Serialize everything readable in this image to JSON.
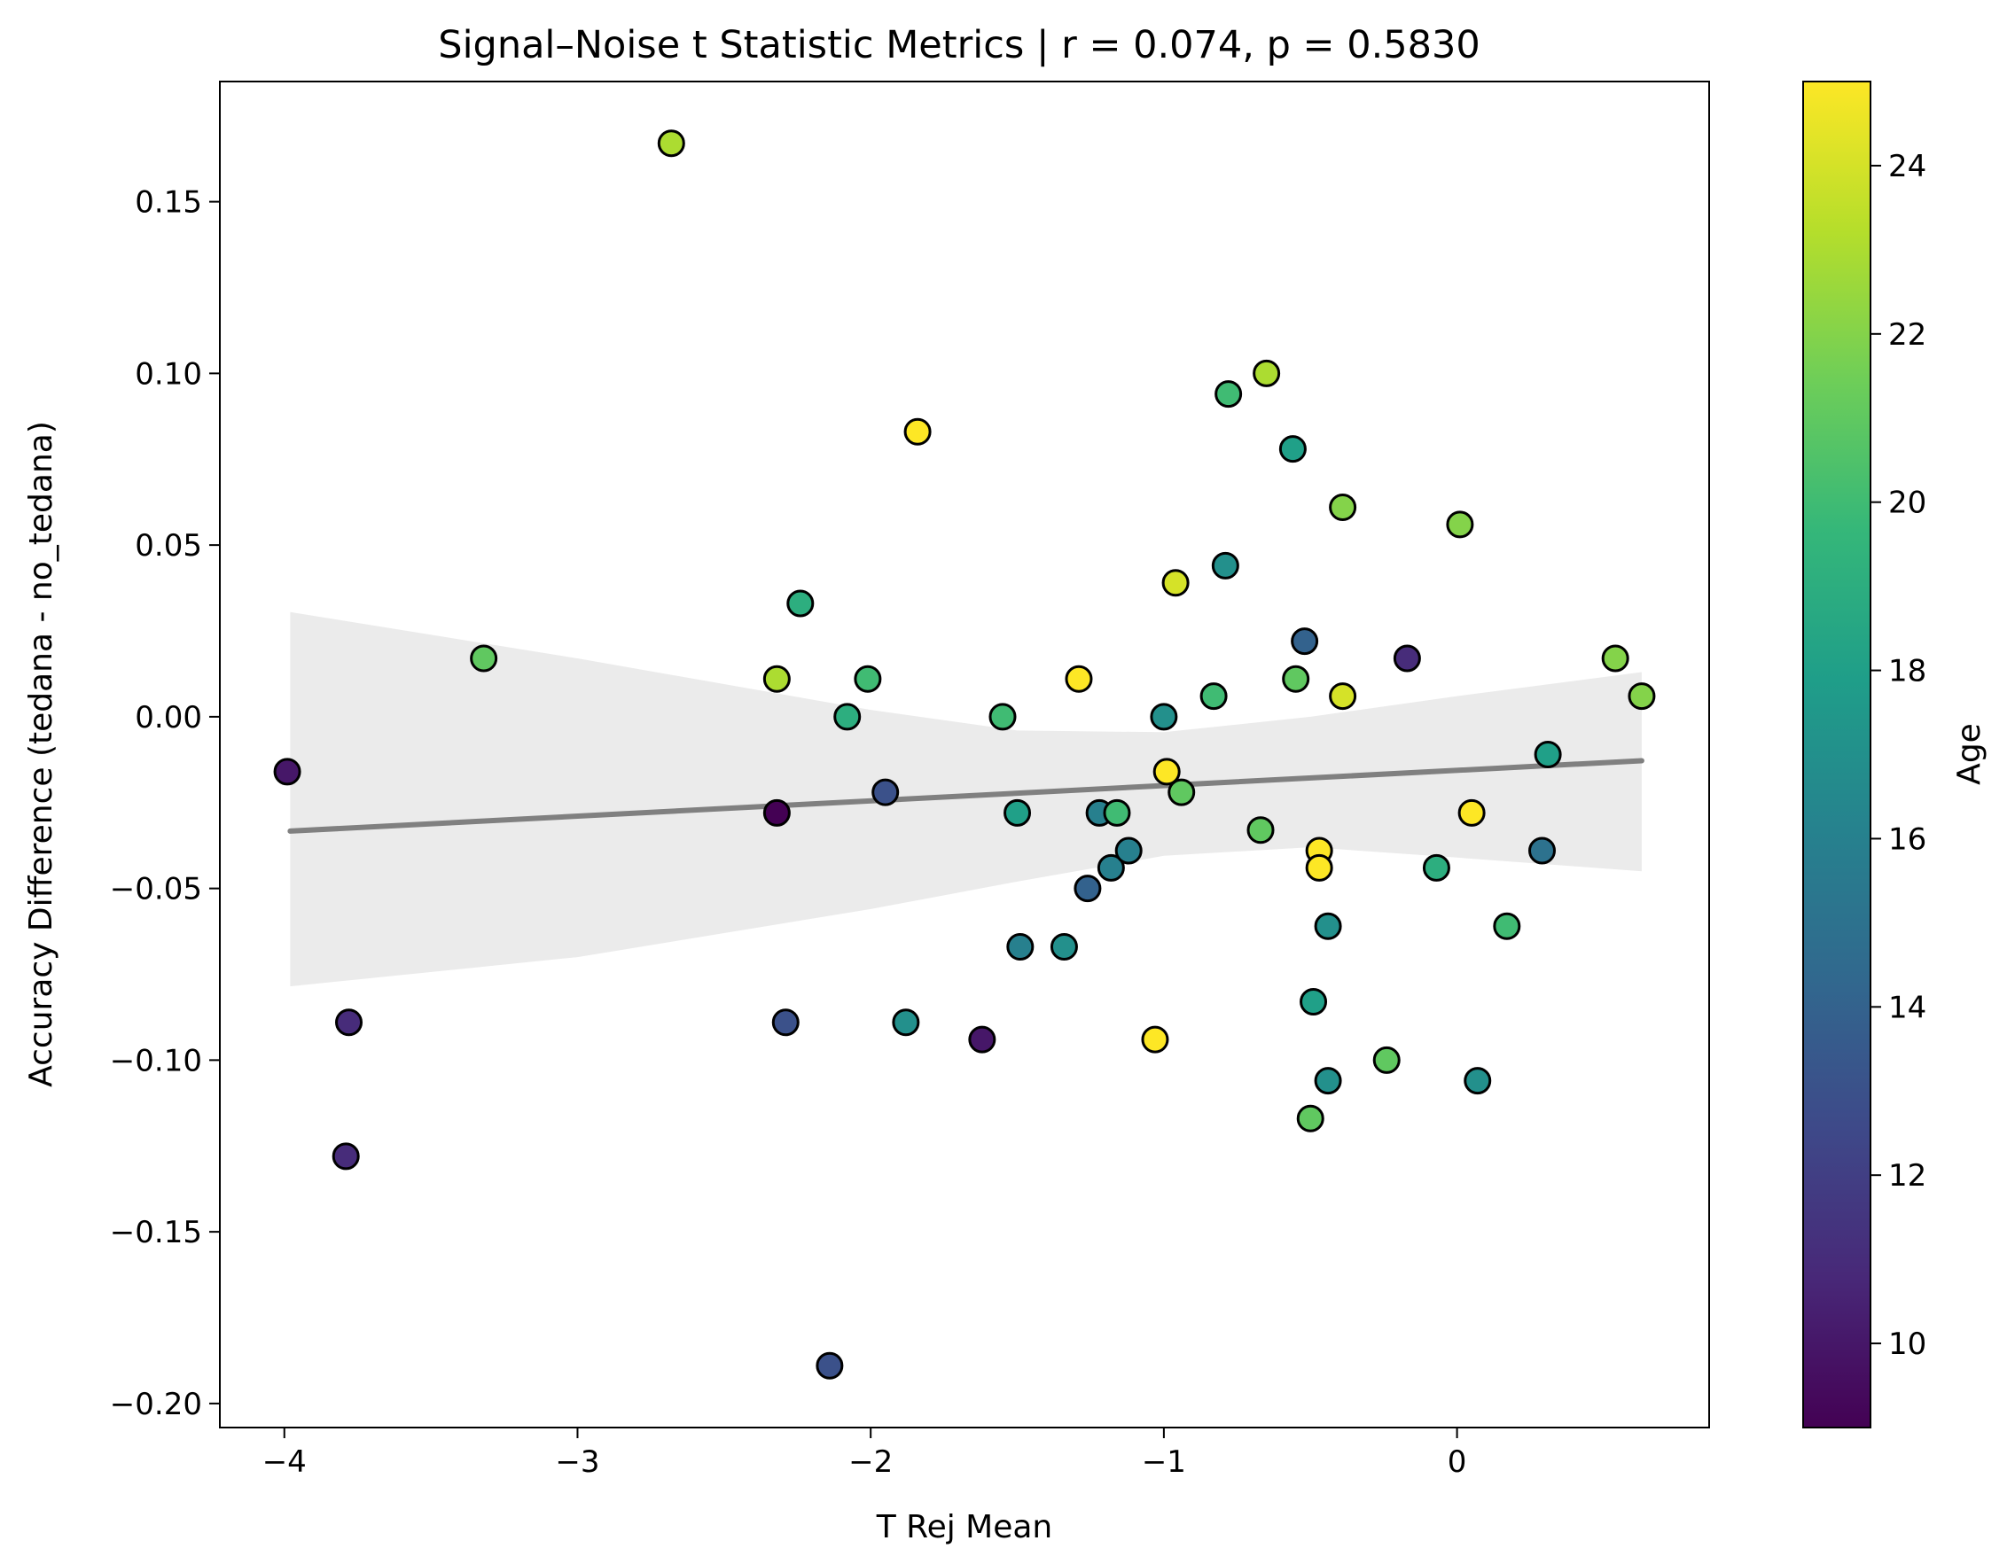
{
  "chart_data": {
    "type": "scatter",
    "title": "Signal–Noise t Statistic Metrics | r = 0.074, p = 0.5830",
    "xlabel": "T Rej Mean",
    "ylabel": "Accuracy Difference (tedana - no_tedana)",
    "xlim": [
      -4.22,
      0.86
    ],
    "ylim": [
      -0.207,
      0.185
    ],
    "x_ticks": [
      -4,
      -3,
      -2,
      -1,
      0
    ],
    "x_tick_labels": [
      "−4",
      "−3",
      "−2",
      "−1",
      "0"
    ],
    "y_ticks": [
      0.15,
      0.1,
      0.05,
      0.0,
      -0.05,
      -0.1,
      -0.15,
      -0.2
    ],
    "y_tick_labels": [
      "0.15",
      "0.10",
      "0.05",
      "0.00",
      "−0.05",
      "−0.10",
      "−0.15",
      "−0.20"
    ],
    "grid": false,
    "colorbar": {
      "label": "Age",
      "range": [
        9,
        25
      ],
      "ticks": [
        10,
        12,
        14,
        16,
        18,
        20,
        22,
        24
      ],
      "tick_labels": [
        "10",
        "12",
        "14",
        "16",
        "18",
        "20",
        "22",
        "24"
      ],
      "colormap": "viridis"
    },
    "regression": {
      "x_range": [
        -3.98,
        0.63
      ],
      "y_at_start": -0.0333,
      "y_at_end": -0.0128,
      "line_color": "#808080",
      "ci_color": "#ebebeb",
      "ci_band": [
        {
          "x": -3.98,
          "lower": -0.0785,
          "upper": 0.0305
        },
        {
          "x": -3.0,
          "lower": -0.07,
          "upper": 0.017
        },
        {
          "x": -2.0,
          "lower": -0.056,
          "upper": 0.002
        },
        {
          "x": -1.5,
          "lower": -0.048,
          "upper": -0.004
        },
        {
          "x": -1.0,
          "lower": -0.0405,
          "upper": -0.0045
        },
        {
          "x": -0.5,
          "lower": -0.038,
          "upper": 0.0
        },
        {
          "x": 0.0,
          "lower": -0.041,
          "upper": 0.006
        },
        {
          "x": 0.63,
          "lower": -0.045,
          "upper": 0.013
        }
      ]
    },
    "points": [
      {
        "x": -2.68,
        "y": 0.167,
        "age": 23
      },
      {
        "x": -3.32,
        "y": 0.017,
        "age": 21
      },
      {
        "x": -3.99,
        "y": -0.016,
        "age": 10
      },
      {
        "x": -3.78,
        "y": -0.089,
        "age": 11
      },
      {
        "x": -3.79,
        "y": -0.128,
        "age": 11
      },
      {
        "x": -2.32,
        "y": 0.011,
        "age": 23
      },
      {
        "x": -2.24,
        "y": 0.033,
        "age": 19
      },
      {
        "x": -2.01,
        "y": 0.011,
        "age": 20
      },
      {
        "x": -2.08,
        "y": 0.0,
        "age": 19
      },
      {
        "x": -1.95,
        "y": -0.022,
        "age": 13
      },
      {
        "x": -2.32,
        "y": -0.028,
        "age": 9
      },
      {
        "x": -2.29,
        "y": -0.089,
        "age": 13
      },
      {
        "x": -1.88,
        "y": -0.089,
        "age": 17
      },
      {
        "x": -1.84,
        "y": 0.083,
        "age": 25
      },
      {
        "x": -2.14,
        "y": -0.189,
        "age": 13
      },
      {
        "x": -1.62,
        "y": -0.094,
        "age": 10
      },
      {
        "x": -1.55,
        "y": 0.0,
        "age": 20
      },
      {
        "x": -1.5,
        "y": -0.028,
        "age": 18
      },
      {
        "x": -1.49,
        "y": -0.067,
        "age": 16
      },
      {
        "x": -1.34,
        "y": -0.067,
        "age": 17
      },
      {
        "x": -1.29,
        "y": 0.011,
        "age": 25
      },
      {
        "x": -1.26,
        "y": -0.05,
        "age": 14
      },
      {
        "x": -1.22,
        "y": -0.028,
        "age": 16
      },
      {
        "x": -1.16,
        "y": -0.028,
        "age": 20
      },
      {
        "x": -1.18,
        "y": -0.044,
        "age": 16
      },
      {
        "x": -1.12,
        "y": -0.039,
        "age": 16
      },
      {
        "x": -1.0,
        "y": 0.0,
        "age": 17
      },
      {
        "x": -0.99,
        "y": -0.016,
        "age": 25
      },
      {
        "x": -0.94,
        "y": -0.022,
        "age": 21
      },
      {
        "x": -0.96,
        "y": 0.039,
        "age": 24
      },
      {
        "x": -1.03,
        "y": -0.094,
        "age": 25
      },
      {
        "x": -0.83,
        "y": 0.006,
        "age": 20
      },
      {
        "x": -0.78,
        "y": 0.094,
        "age": 20
      },
      {
        "x": -0.79,
        "y": 0.044,
        "age": 17
      },
      {
        "x": -0.65,
        "y": 0.1,
        "age": 23
      },
      {
        "x": -0.67,
        "y": -0.033,
        "age": 21
      },
      {
        "x": -0.56,
        "y": 0.078,
        "age": 18
      },
      {
        "x": -0.55,
        "y": 0.011,
        "age": 21
      },
      {
        "x": -0.52,
        "y": 0.022,
        "age": 14
      },
      {
        "x": -0.49,
        "y": -0.083,
        "age": 18
      },
      {
        "x": -0.47,
        "y": -0.039,
        "age": 25
      },
      {
        "x": -0.47,
        "y": -0.044,
        "age": 25
      },
      {
        "x": -0.44,
        "y": -0.061,
        "age": 17
      },
      {
        "x": -0.44,
        "y": -0.106,
        "age": 17
      },
      {
        "x": -0.5,
        "y": -0.117,
        "age": 21
      },
      {
        "x": -0.39,
        "y": 0.061,
        "age": 22
      },
      {
        "x": -0.39,
        "y": 0.006,
        "age": 24
      },
      {
        "x": -0.24,
        "y": -0.1,
        "age": 21
      },
      {
        "x": -0.17,
        "y": 0.017,
        "age": 11
      },
      {
        "x": -0.07,
        "y": -0.044,
        "age": 19
      },
      {
        "x": 0.01,
        "y": 0.056,
        "age": 22
      },
      {
        "x": 0.05,
        "y": -0.028,
        "age": 25
      },
      {
        "x": 0.07,
        "y": -0.106,
        "age": 17
      },
      {
        "x": 0.17,
        "y": -0.061,
        "age": 20
      },
      {
        "x": 0.29,
        "y": -0.039,
        "age": 15
      },
      {
        "x": 0.31,
        "y": -0.011,
        "age": 18
      },
      {
        "x": 0.54,
        "y": 0.017,
        "age": 22
      },
      {
        "x": 0.63,
        "y": 0.006,
        "age": 22
      }
    ]
  }
}
